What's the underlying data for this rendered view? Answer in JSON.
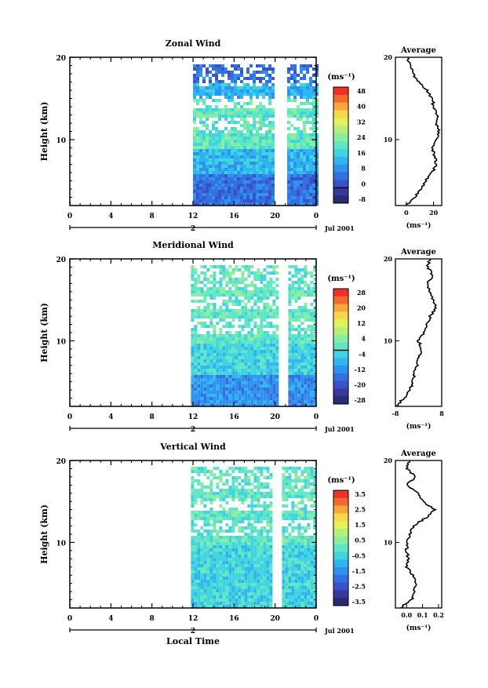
{
  "chart_data": [
    {
      "type": "heatmap",
      "title": "Zonal Wind",
      "ylabel": "Height (km)",
      "xlabel": "",
      "x_ticks": [
        "0",
        "4",
        "8",
        "12",
        "16",
        "20",
        "0"
      ],
      "y_ticks": [
        "10",
        "20"
      ],
      "date_label": "Jul 2001",
      "day_label": "2",
      "ylim": [
        2,
        20
      ],
      "data_start_hour": 12,
      "data_gap_hours": [
        20.2,
        20.9
      ],
      "colorbar": {
        "unit_label": "(ms⁻¹)",
        "ticks": [
          "48",
          "40",
          "32",
          "24",
          "16",
          "8",
          "0",
          "-8"
        ],
        "colors": [
          "#f0302a",
          "#f46a2c",
          "#f7a63a",
          "#f7d84a",
          "#e2f25a",
          "#b5f07a",
          "#8aeea0",
          "#5fe6c4",
          "#3fd4e0",
          "#2fb6ee",
          "#2f92ee",
          "#3470e0",
          "#3a52c8",
          "#38389a",
          "#2a2a70"
        ],
        "zero_line_index": 6
      },
      "average_profile": {
        "title": "Average",
        "xlabel": "(ms⁻¹)",
        "x_ticks": [
          "0",
          "20"
        ],
        "y_ticks": [
          "10",
          "20"
        ],
        "xlim": [
          -8,
          26
        ],
        "heights": [
          2,
          3,
          4,
          5,
          6,
          7,
          8,
          9,
          10,
          11,
          12,
          13,
          14,
          15,
          16,
          17,
          18,
          19,
          20
        ],
        "values": [
          0,
          6,
          11,
          14,
          19,
          22,
          21,
          19,
          22,
          24,
          22,
          23,
          20,
          19,
          15,
          9,
          5,
          3,
          1
        ]
      }
    },
    {
      "type": "heatmap",
      "title": "Meridional Wind",
      "ylabel": "Height (km)",
      "xlabel": "",
      "x_ticks": [
        "0",
        "4",
        "8",
        "12",
        "16",
        "20",
        "0"
      ],
      "y_ticks": [
        "10",
        "20"
      ],
      "date_label": "Jul 2001",
      "day_label": "2",
      "ylim": [
        2,
        20
      ],
      "data_start_hour": 11.8,
      "data_gap_hours": [
        20.4,
        21.0
      ],
      "colorbar": {
        "unit_label": "(ms⁻¹)",
        "ticks": [
          "28",
          "20",
          "12",
          "4",
          "-4",
          "-12",
          "-20",
          "-28"
        ],
        "colors": [
          "#f0302a",
          "#f46a2c",
          "#f7a63a",
          "#f7d84a",
          "#e2f25a",
          "#b5f07a",
          "#8aeea0",
          "#5fe6c4",
          "#3fd4e0",
          "#2fb6ee",
          "#2f92ee",
          "#3470e0",
          "#3a52c8",
          "#38389a",
          "#2a2a70"
        ],
        "zero_line_index": 3.5
      },
      "average_profile": {
        "title": "Average",
        "xlabel": "(ms⁻¹)",
        "x_ticks": [
          "-8",
          "8"
        ],
        "y_ticks": [
          "10",
          "20"
        ],
        "xlim": [
          -8,
          8
        ],
        "heights": [
          2,
          3,
          4,
          5,
          6,
          7,
          8,
          9,
          10,
          11,
          12,
          13,
          14,
          15,
          16,
          17,
          18,
          19,
          20
        ],
        "values": [
          -8,
          -5,
          -3,
          -2,
          -1.5,
          -0.5,
          0,
          1,
          0,
          2,
          3,
          4,
          6,
          5,
          4,
          3,
          5,
          3,
          4
        ]
      }
    },
    {
      "type": "heatmap",
      "title": "Vertical Wind",
      "ylabel": "Height (km)",
      "xlabel": "Local Time",
      "x_ticks": [
        "0",
        "4",
        "8",
        "12",
        "16",
        "20",
        "0"
      ],
      "y_ticks": [
        "10",
        "20"
      ],
      "date_label": "Jul 2001",
      "day_label": "2",
      "ylim": [
        2,
        20
      ],
      "data_start_hour": 11.8,
      "data_gap_hours": [
        20.0,
        20.6
      ],
      "colorbar": {
        "unit_label": "(ms⁻¹)",
        "ticks": [
          "3.5",
          "2.5",
          "1.5",
          "0.5",
          "-0.5",
          "-1.5",
          "-2.5",
          "-3.5"
        ],
        "colors": [
          "#f0302a",
          "#f46a2c",
          "#f7a63a",
          "#f7d84a",
          "#e2f25a",
          "#b5f07a",
          "#8aeea0",
          "#5fe6c4",
          "#3fd4e0",
          "#2fb6ee",
          "#2f92ee",
          "#3470e0",
          "#3a52c8",
          "#38389a",
          "#2a2a70"
        ],
        "zero_line_index": -1
      },
      "average_profile": {
        "title": "Average",
        "xlabel": "(ms⁻¹)",
        "x_ticks": [
          "0.0",
          "0.1",
          "0.2"
        ],
        "y_ticks": [
          "10",
          "20"
        ],
        "xlim": [
          -0.07,
          0.22
        ],
        "heights": [
          2,
          3,
          4,
          5,
          6,
          7,
          8,
          9,
          10,
          11,
          12,
          13,
          14,
          15,
          16,
          17,
          18,
          19,
          20
        ],
        "values": [
          -0.04,
          0.03,
          0.05,
          0.06,
          0.04,
          0.0,
          0.01,
          0.0,
          0.0,
          0.02,
          0.04,
          0.12,
          0.18,
          0.1,
          0.08,
          0.0,
          0.06,
          0.0,
          0.02
        ]
      }
    }
  ]
}
